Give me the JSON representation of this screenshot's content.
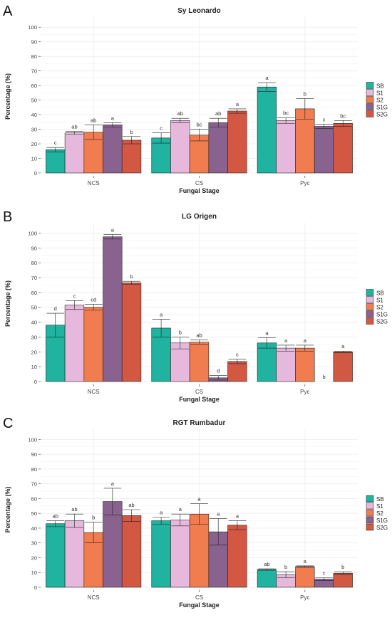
{
  "colors": {
    "SB": "#1fb3a0",
    "S1": "#e6b8dc",
    "S2": "#f07c4f",
    "S1G": "#8a6290",
    "S2G": "#d25843",
    "grid": "#ebebeb",
    "axis": "#333333",
    "text": "#222222"
  },
  "chart_data": [
    {
      "panel_letter": "A",
      "type": "bar",
      "title": "Sy Leonardo",
      "xlabel": "Fungal Stage",
      "ylabel": "Percentage (%)",
      "ylim": [
        0,
        100
      ],
      "yticks": [
        0,
        10,
        20,
        30,
        40,
        50,
        60,
        70,
        80,
        90,
        100
      ],
      "grid": true,
      "legend": "right",
      "categories": [
        "NCS",
        "CS",
        "Pyc"
      ],
      "series": [
        {
          "name": "SB",
          "color_key": "SB",
          "values": [
            16,
            24,
            59
          ],
          "err": [
            1.5,
            3.5,
            3
          ],
          "letters": [
            "c",
            "c",
            "a"
          ]
        },
        {
          "name": "S1",
          "color_key": "S1",
          "values": [
            27.5,
            36,
            36
          ],
          "err": [
            1,
            1.5,
            2
          ],
          "letters": [
            "ab",
            "ab",
            "bc"
          ]
        },
        {
          "name": "S2",
          "color_key": "S2",
          "values": [
            28,
            26,
            44
          ],
          "err": [
            5,
            4,
            7
          ],
          "letters": [
            "ab",
            "bc",
            "b"
          ]
        },
        {
          "name": "S1G",
          "color_key": "S1G",
          "values": [
            33,
            34.5,
            32
          ],
          "err": [
            1.5,
            3,
            1.5
          ],
          "letters": [
            "a",
            "ab",
            "c"
          ]
        },
        {
          "name": "S2G",
          "color_key": "S2G",
          "values": [
            22.5,
            42.5,
            34
          ],
          "err": [
            2.5,
            1.5,
            2
          ],
          "letters": [
            "b",
            "a",
            "bc"
          ]
        }
      ]
    },
    {
      "panel_letter": "B",
      "type": "bar",
      "title": "LG Origen",
      "xlabel": "Fungal Stage",
      "ylabel": "Percentage (%)",
      "ylim": [
        0,
        100
      ],
      "yticks": [
        0,
        10,
        20,
        30,
        40,
        50,
        60,
        70,
        80,
        90,
        100
      ],
      "grid": true,
      "legend": "right",
      "categories": [
        "NCS",
        "CS",
        "Pyc"
      ],
      "series": [
        {
          "name": "SB",
          "color_key": "SB",
          "values": [
            38,
            36,
            26
          ],
          "err": [
            8,
            6,
            3.5
          ],
          "letters": [
            "d",
            "a",
            "a"
          ]
        },
        {
          "name": "S1",
          "color_key": "S1",
          "values": [
            51.5,
            26,
            22.5
          ],
          "err": [
            3,
            4,
            2
          ],
          "letters": [
            "c",
            "b",
            "a"
          ]
        },
        {
          "name": "S2",
          "color_key": "S2",
          "values": [
            50,
            26.5,
            22.5
          ],
          "err": [
            2,
            1.5,
            2
          ],
          "letters": [
            "cd",
            "ab",
            "a"
          ]
        },
        {
          "name": "S1G",
          "color_key": "S1G",
          "values": [
            97.5,
            2.5,
            0
          ],
          "err": [
            1.5,
            1.5,
            0
          ],
          "letters": [
            "a",
            "d",
            "b"
          ]
        },
        {
          "name": "S2G",
          "color_key": "S2G",
          "values": [
            66.5,
            13.5,
            20
          ],
          "err": [
            1,
            1.5,
            0.5
          ],
          "letters": [
            "b",
            "c",
            "a"
          ]
        }
      ]
    },
    {
      "panel_letter": "C",
      "type": "bar",
      "title": "RGT Rumbadur",
      "xlabel": "Fungal Stage",
      "ylabel": "Percentage (%)",
      "ylim": [
        0,
        100
      ],
      "yticks": [
        0,
        10,
        20,
        30,
        40,
        50,
        60,
        70,
        80,
        90,
        100
      ],
      "grid": true,
      "legend": "right",
      "categories": [
        "NCS",
        "CS",
        "Pyc"
      ],
      "series": [
        {
          "name": "SB",
          "color_key": "SB",
          "values": [
            43,
            45,
            12
          ],
          "err": [
            2,
            2.5,
            0.5
          ],
          "letters": [
            "ab",
            "a",
            "ab"
          ]
        },
        {
          "name": "S1",
          "color_key": "S1",
          "values": [
            45,
            45.5,
            8.5
          ],
          "err": [
            4.5,
            4,
            2
          ],
          "letters": [
            "ab",
            "a",
            "b"
          ]
        },
        {
          "name": "S2",
          "color_key": "S2",
          "values": [
            37,
            49.5,
            14
          ],
          "err": [
            7,
            7,
            0.5
          ],
          "letters": [
            "b",
            "a",
            "a"
          ]
        },
        {
          "name": "S1G",
          "color_key": "S1G",
          "values": [
            58,
            37.5,
            5.5
          ],
          "err": [
            9,
            9,
            1
          ],
          "letters": [
            "a",
            "a",
            "c"
          ]
        },
        {
          "name": "S2G",
          "color_key": "S2G",
          "values": [
            48.5,
            42,
            9.5
          ],
          "err": [
            4,
            3,
            1
          ],
          "letters": [
            "ab",
            "a",
            "b"
          ]
        }
      ]
    }
  ]
}
